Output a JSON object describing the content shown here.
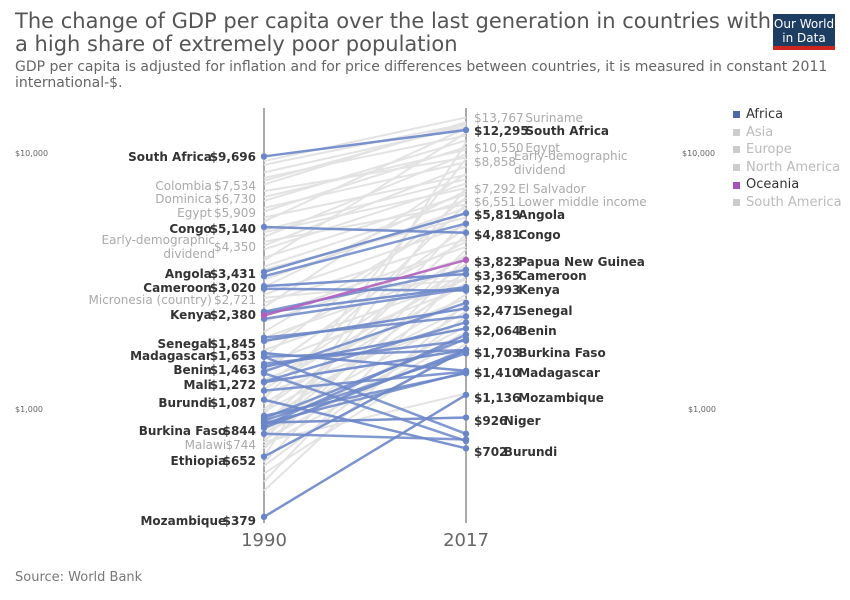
{
  "header": {
    "title": "The change of GDP per capita over the last generation in countries with a high share of extremely poor population",
    "subtitle": "GDP per capita is adjusted for inflation and for price differences between countries, it is measured in constant 2011 international-$.",
    "logo_line1": "Our World",
    "logo_line2": "in Data"
  },
  "footer": {
    "source": "Source: World Bank"
  },
  "colors": {
    "africa": "#6b86c8",
    "oceania": "#b35fbf",
    "other": "#e3e3e3",
    "axis": "#555555"
  },
  "legend": [
    {
      "name": "Africa",
      "color": "#4c6aa8",
      "active": true
    },
    {
      "name": "Asia",
      "color": "#cccccc",
      "active": false
    },
    {
      "name": "Europe",
      "color": "#cccccc",
      "active": false
    },
    {
      "name": "North America",
      "color": "#cccccc",
      "active": false
    },
    {
      "name": "Oceania",
      "color": "#a652ba",
      "active": true
    },
    {
      "name": "South America",
      "color": "#cccccc",
      "active": false
    }
  ],
  "chart_data": {
    "type": "slope",
    "x": [
      "1990",
      "2017"
    ],
    "yscale": "log",
    "ylim": [
      379,
      13767
    ],
    "y_tick_labels": [
      "$10,000",
      "$1,000"
    ],
    "labeled_series": [
      {
        "name": "South Africa",
        "group": "Africa",
        "start": 9696,
        "end": 12295,
        "start_label": "$9,696",
        "end_label": "$12,295",
        "show_start": true,
        "show_end": true
      },
      {
        "name": "Congo",
        "group": "Africa",
        "start": 5140,
        "end": 4881,
        "start_label": "$5,140",
        "end_label": "$4,881",
        "show_start": true,
        "show_end": true
      },
      {
        "name": "Angola",
        "group": "Africa",
        "start": 3431,
        "end": 5819,
        "start_label": "$3,431",
        "end_label": "$5,819",
        "show_start": true,
        "show_end": true
      },
      {
        "name": "Cameroon",
        "group": "Africa",
        "start": 3020,
        "end": 3365,
        "start_label": "$3,020",
        "end_label": "$3,365",
        "show_start": true,
        "show_end": true
      },
      {
        "name": "Kenya",
        "group": "Africa",
        "start": 2380,
        "end": 2993,
        "start_label": "$2,380",
        "end_label": "$2,993",
        "show_start": true,
        "show_end": true
      },
      {
        "name": "Senegal",
        "group": "Africa",
        "start": 1845,
        "end": 2471,
        "start_label": "$1,845",
        "end_label": "$2,471",
        "show_start": true,
        "show_end": true
      },
      {
        "name": "Madagascar",
        "group": "Africa",
        "start": 1653,
        "end": 1410,
        "start_label": "$1,653",
        "end_label": "$1,410",
        "show_start": true,
        "show_end": true
      },
      {
        "name": "Benin",
        "group": "Africa",
        "start": 1463,
        "end": 2064,
        "start_label": "$1,463",
        "end_label": "$2,064",
        "show_start": true,
        "show_end": true
      },
      {
        "name": "Mali",
        "group": "Africa",
        "start": 1272,
        "end": 1703,
        "start_label": "$1,272",
        "end_label": "",
        "show_start": true,
        "show_end": false
      },
      {
        "name": "Burundi",
        "group": "Africa",
        "start": 1087,
        "end": 702,
        "start_label": "$1,087",
        "end_label": "$702",
        "show_start": true,
        "show_end": true
      },
      {
        "name": "Burkina Faso",
        "group": "Africa",
        "start": 844,
        "end": 1703,
        "start_label": "$844",
        "end_label": "$1,703",
        "show_start": true,
        "show_end": true
      },
      {
        "name": "Ethiopia",
        "group": "Africa",
        "start": 652,
        "end": 1704,
        "start_label": "$652",
        "end_label": "",
        "show_start": true,
        "show_end": false
      },
      {
        "name": "Mozambique",
        "group": "Africa",
        "start": 379,
        "end": 1136,
        "start_label": "$379",
        "end_label": "$1,136",
        "show_start": true,
        "show_end": true
      },
      {
        "name": "Niger",
        "group": "Africa",
        "start": 885,
        "end": 926,
        "start_label": "",
        "end_label": "$926",
        "show_start": false,
        "show_end": true
      },
      {
        "name": "Papua New Guinea",
        "group": "Oceania",
        "start": 2321,
        "end": 3823,
        "start_label": "",
        "end_label": "$3,823",
        "show_start": false,
        "show_end": true
      }
    ],
    "muted_series": [
      {
        "name": "Suriname",
        "start": 9300,
        "end": 13767,
        "start_label": "",
        "end_label": "$13,767",
        "show_start": false,
        "show_end": true
      },
      {
        "name": "Colombia",
        "start": 7534,
        "end": 13200,
        "start_label": "$7,534",
        "end_label": "",
        "show_start": true,
        "show_end": false
      },
      {
        "name": "Dominica",
        "start": 6730,
        "end": 10300,
        "start_label": "$6,730",
        "end_label": "",
        "show_start": true,
        "show_end": false
      },
      {
        "name": "Egypt",
        "start": 5909,
        "end": 10550,
        "start_label": "$5,909",
        "end_label": "$10,550",
        "show_start": true,
        "show_end": true
      },
      {
        "name": "Early-demographic dividend",
        "start": 4350,
        "end": 8858,
        "start_label": "$4,350",
        "end_label": "$8,858",
        "show_start": true,
        "show_end": true
      },
      {
        "name": "El Salvador",
        "start": 4900,
        "end": 7292,
        "start_label": "",
        "end_label": "$7,292",
        "show_start": false,
        "show_end": true
      },
      {
        "name": "Lower middle income",
        "start": 3600,
        "end": 6551,
        "start_label": "",
        "end_label": "$6,551",
        "show_start": false,
        "show_end": true
      },
      {
        "name": "Micronesia (country)",
        "start": 2721,
        "end": 3200,
        "start_label": "$2,721",
        "end_label": "",
        "show_start": true,
        "show_end": false
      },
      {
        "name": "Malawi",
        "start": 744,
        "end": 1150,
        "start_label": "$744",
        "end_label": "",
        "show_start": true,
        "show_end": false
      }
    ],
    "unlabeled_series": {
      "africa": [
        [
          3300,
          5300
        ],
        [
          2950,
          2900
        ],
        [
          2400,
          3500
        ],
        [
          1900,
          2300
        ],
        [
          1600,
          800
        ],
        [
          1500,
          1850
        ],
        [
          1400,
          2600
        ],
        [
          1380,
          750
        ],
        [
          1280,
          2180
        ],
        [
          1180,
          1400
        ],
        [
          940,
          1380
        ],
        [
          920,
          1880
        ],
        [
          900,
          1650
        ],
        [
          880,
          1390
        ],
        [
          860,
          1950
        ],
        [
          800,
          760
        ],
        [
          1600,
          1700
        ],
        [
          2250,
          2950
        ]
      ],
      "gray": [
        [
          9000,
          13000
        ],
        [
          8400,
          12600
        ],
        [
          8000,
          11700
        ],
        [
          7800,
          12900
        ],
        [
          7100,
          9600
        ],
        [
          6500,
          11200
        ],
        [
          6100,
          9200
        ],
        [
          5600,
          8200
        ],
        [
          5400,
          12500
        ],
        [
          5000,
          7900
        ],
        [
          4700,
          9900
        ],
        [
          4500,
          6300
        ],
        [
          4200,
          7600
        ],
        [
          3900,
          6900
        ],
        [
          3800,
          12000
        ],
        [
          3500,
          5600
        ],
        [
          3200,
          6100
        ],
        [
          3000,
          7100
        ],
        [
          2800,
          5200
        ],
        [
          2600,
          4600
        ],
        [
          2500,
          8300
        ],
        [
          2300,
          4300
        ],
        [
          2200,
          3900
        ],
        [
          2000,
          5900
        ],
        [
          1900,
          3600
        ],
        [
          1800,
          4500
        ],
        [
          1700,
          3200
        ],
        [
          1600,
          6700
        ],
        [
          1500,
          3000
        ],
        [
          1400,
          5100
        ],
        [
          1300,
          2700
        ],
        [
          1250,
          4000
        ],
        [
          1200,
          3400
        ],
        [
          1150,
          2200
        ],
        [
          1100,
          6300
        ],
        [
          1050,
          3100
        ],
        [
          1000,
          3700
        ],
        [
          980,
          2500
        ],
        [
          950,
          9500
        ],
        [
          900,
          2800
        ],
        [
          870,
          4800
        ],
        [
          850,
          2400
        ],
        [
          820,
          3300
        ],
        [
          800,
          2100
        ],
        [
          780,
          5500
        ],
        [
          760,
          2000
        ],
        [
          740,
          7300
        ],
        [
          720,
          1900
        ],
        [
          700,
          4200
        ],
        [
          650,
          11000
        ],
        [
          620,
          3900
        ],
        [
          600,
          2300
        ],
        [
          560,
          1800
        ],
        [
          520,
          3500
        ],
        [
          480,
          2600
        ]
      ]
    }
  }
}
